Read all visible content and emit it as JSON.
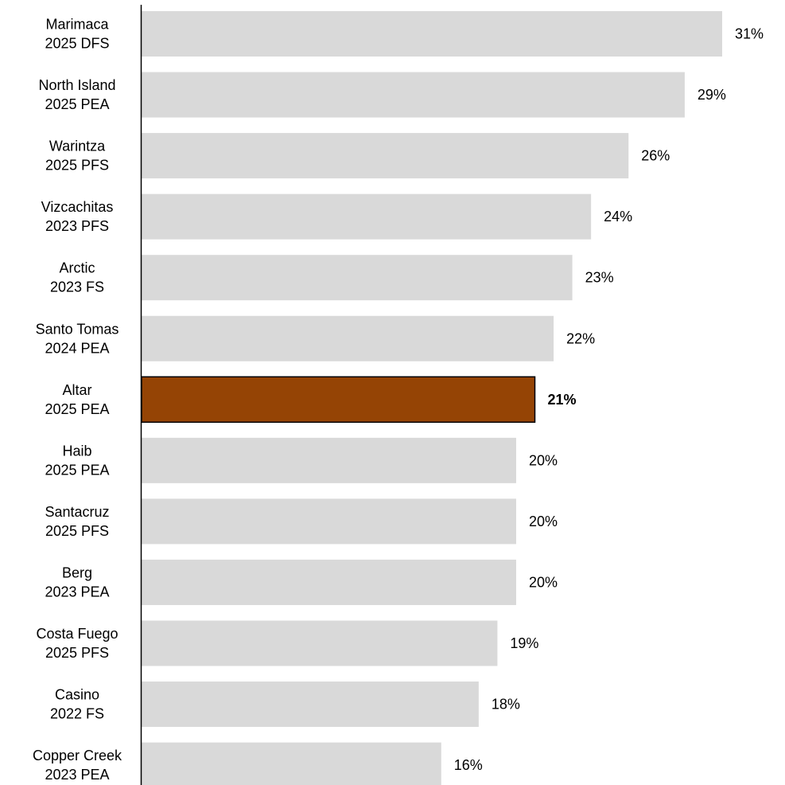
{
  "chart_data": {
    "type": "bar",
    "orientation": "horizontal",
    "categories": [
      [
        "Marimaca",
        "2025 DFS"
      ],
      [
        "North Island",
        "2025 PEA"
      ],
      [
        "Warintza",
        "2025 PFS"
      ],
      [
        "Vizcachitas",
        "2023 PFS"
      ],
      [
        "Arctic",
        "2023 FS"
      ],
      [
        "Santo Tomas",
        "2024 PEA"
      ],
      [
        "Altar",
        "2025 PEA"
      ],
      [
        "Haib",
        "2025 PEA"
      ],
      [
        "Santacruz",
        "2025 PFS"
      ],
      [
        "Berg",
        "2023 PEA"
      ],
      [
        "Costa Fuego",
        "2025 PFS"
      ],
      [
        "Casino",
        "2022 FS"
      ],
      [
        "Copper Creek",
        "2023 PEA"
      ]
    ],
    "values": [
      31,
      29,
      26,
      24,
      23,
      22,
      21,
      20,
      20,
      20,
      19,
      18,
      16
    ],
    "value_labels": [
      "31%",
      "29%",
      "26%",
      "24%",
      "23%",
      "22%",
      "21%",
      "20%",
      "20%",
      "20%",
      "19%",
      "18%",
      "16%"
    ],
    "highlight_index": 6,
    "xlim": [
      0,
      31
    ],
    "grid": false,
    "legend": "none",
    "colors": {
      "bar": "#d9d9d9",
      "highlight": "#954405",
      "highlight_border": "#000000",
      "axis": "#000000"
    }
  }
}
